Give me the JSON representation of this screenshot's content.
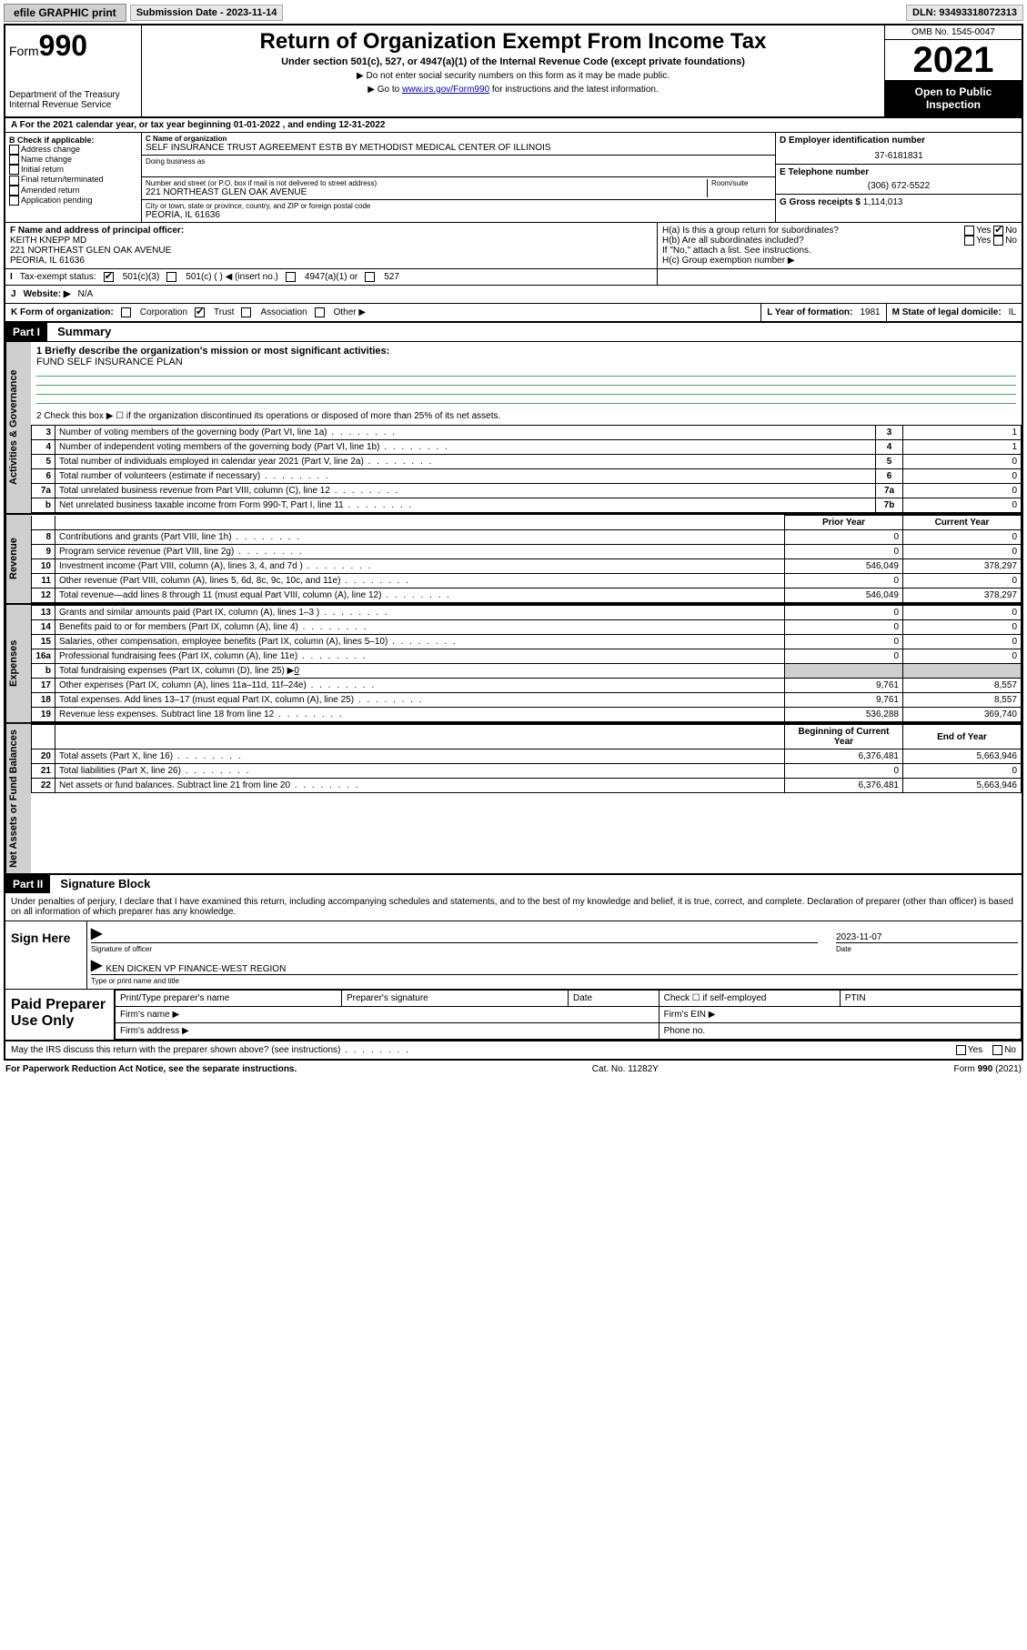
{
  "topbar": {
    "efile": "efile GRAPHIC print",
    "submission_label": "Submission Date - 2023-11-14",
    "dln": "DLN: 93493318072313"
  },
  "header": {
    "form_word": "Form",
    "form_num": "990",
    "dept": "Department of the Treasury",
    "irs": "Internal Revenue Service",
    "title": "Return of Organization Exempt From Income Tax",
    "subtitle": "Under section 501(c), 527, or 4947(a)(1) of the Internal Revenue Code (except private foundations)",
    "note1": "▶ Do not enter social security numbers on this form as it may be made public.",
    "note2_pre": "▶ Go to ",
    "note2_link": "www.irs.gov/Form990",
    "note2_post": " for instructions and the latest information.",
    "omb": "OMB No. 1545-0047",
    "year": "2021",
    "open": "Open to Public Inspection"
  },
  "period": "A For the 2021 calendar year, or tax year beginning 01-01-2022   , and ending 12-31-2022",
  "boxB": {
    "label": "B Check if applicable:",
    "items": [
      "Address change",
      "Name change",
      "Initial return",
      "Final return/terminated",
      "Amended return",
      "Application pending"
    ]
  },
  "boxC": {
    "name_label": "C Name of organization",
    "name": "SELF INSURANCE TRUST AGREEMENT ESTB BY METHODIST MEDICAL CENTER OF ILLINOIS",
    "dba_label": "Doing business as",
    "addr_label": "Number and street (or P.O. box if mail is not delivered to street address)",
    "room_label": "Room/suite",
    "addr": "221 NORTHEAST GLEN OAK AVENUE",
    "city_label": "City or town, state or province, country, and ZIP or foreign postal code",
    "city": "PEORIA, IL  61636"
  },
  "boxD": {
    "label": "D Employer identification number",
    "val": "37-6181831"
  },
  "boxE": {
    "label": "E Telephone number",
    "val": "(306) 672-5522"
  },
  "boxG": {
    "label": "G Gross receipts $",
    "val": "1,114,013"
  },
  "boxF": {
    "label": "F  Name and address of principal officer:",
    "name": "KEITH KNEPP MD",
    "addr1": "221 NORTHEAST GLEN OAK AVENUE",
    "addr2": "PEORIA, IL  61636"
  },
  "boxH": {
    "a": "H(a)  Is this a group return for subordinates?",
    "b": "H(b)  Are all subordinates included?",
    "b_note": "If \"No,\" attach a list. See instructions.",
    "c": "H(c)  Group exemption number ▶",
    "yes": "Yes",
    "no": "No"
  },
  "boxI": {
    "label": "Tax-exempt status:",
    "o1": "501(c)(3)",
    "o2": "501(c) (  ) ◀ (insert no.)",
    "o3": "4947(a)(1) or",
    "o4": "527"
  },
  "boxJ": {
    "label": "Website: ▶",
    "val": "N/A"
  },
  "boxK": {
    "label": "K Form of organization:",
    "o1": "Corporation",
    "o2": "Trust",
    "o3": "Association",
    "o4": "Other ▶"
  },
  "boxL": {
    "label": "L Year of formation:",
    "val": "1981"
  },
  "boxM": {
    "label": "M State of legal domicile:",
    "val": "IL"
  },
  "partI": {
    "tag": "Part I",
    "title": "Summary"
  },
  "summary": {
    "line1_label": "1  Briefly describe the organization's mission or most significant activities:",
    "line1_val": "FUND SELF INSURANCE PLAN",
    "line2": "2   Check this box ▶ ☐  if the organization discontinued its operations or disposed of more than 25% of its net assets.",
    "rows_gov": [
      {
        "n": "3",
        "d": "Number of voting members of the governing body (Part VI, line 1a)",
        "b": "3",
        "v": "1"
      },
      {
        "n": "4",
        "d": "Number of independent voting members of the governing body (Part VI, line 1b)",
        "b": "4",
        "v": "1"
      },
      {
        "n": "5",
        "d": "Total number of individuals employed in calendar year 2021 (Part V, line 2a)",
        "b": "5",
        "v": "0"
      },
      {
        "n": "6",
        "d": "Total number of volunteers (estimate if necessary)",
        "b": "6",
        "v": "0"
      },
      {
        "n": "7a",
        "d": "Total unrelated business revenue from Part VIII, column (C), line 12",
        "b": "7a",
        "v": "0"
      },
      {
        "n": "b",
        "d": "Net unrelated business taxable income from Form 990-T, Part I, line 11",
        "b": "7b",
        "v": "0"
      }
    ],
    "col_prior": "Prior Year",
    "col_current": "Current Year",
    "rows_rev": [
      {
        "n": "8",
        "d": "Contributions and grants (Part VIII, line 1h)",
        "p": "0",
        "c": "0"
      },
      {
        "n": "9",
        "d": "Program service revenue (Part VIII, line 2g)",
        "p": "0",
        "c": "0"
      },
      {
        "n": "10",
        "d": "Investment income (Part VIII, column (A), lines 3, 4, and 7d )",
        "p": "546,049",
        "c": "378,297"
      },
      {
        "n": "11",
        "d": "Other revenue (Part VIII, column (A), lines 5, 6d, 8c, 9c, 10c, and 11e)",
        "p": "0",
        "c": "0"
      },
      {
        "n": "12",
        "d": "Total revenue—add lines 8 through 11 (must equal Part VIII, column (A), line 12)",
        "p": "546,049",
        "c": "378,297"
      }
    ],
    "rows_exp": [
      {
        "n": "13",
        "d": "Grants and similar amounts paid (Part IX, column (A), lines 1–3 )",
        "p": "0",
        "c": "0"
      },
      {
        "n": "14",
        "d": "Benefits paid to or for members (Part IX, column (A), line 4)",
        "p": "0",
        "c": "0"
      },
      {
        "n": "15",
        "d": "Salaries, other compensation, employee benefits (Part IX, column (A), lines 5–10)",
        "p": "0",
        "c": "0"
      },
      {
        "n": "16a",
        "d": "Professional fundraising fees (Part IX, column (A), line 11e)",
        "p": "0",
        "c": "0"
      }
    ],
    "row16b": {
      "n": "b",
      "d": "Total fundraising expenses (Part IX, column (D), line 25) ▶",
      "v": "0"
    },
    "rows_exp2": [
      {
        "n": "17",
        "d": "Other expenses (Part IX, column (A), lines 11a–11d, 11f–24e)",
        "p": "9,761",
        "c": "8,557"
      },
      {
        "n": "18",
        "d": "Total expenses. Add lines 13–17 (must equal Part IX, column (A), line 25)",
        "p": "9,761",
        "c": "8,557"
      },
      {
        "n": "19",
        "d": "Revenue less expenses. Subtract line 18 from line 12",
        "p": "536,288",
        "c": "369,740"
      }
    ],
    "col_begin": "Beginning of Current Year",
    "col_end": "End of Year",
    "rows_net": [
      {
        "n": "20",
        "d": "Total assets (Part X, line 16)",
        "p": "6,376,481",
        "c": "5,663,946"
      },
      {
        "n": "21",
        "d": "Total liabilities (Part X, line 26)",
        "p": "0",
        "c": "0"
      },
      {
        "n": "22",
        "d": "Net assets or fund balances. Subtract line 21 from line 20",
        "p": "6,376,481",
        "c": "5,663,946"
      }
    ],
    "tabs": {
      "gov": "Activities & Governance",
      "rev": "Revenue",
      "exp": "Expenses",
      "net": "Net Assets or Fund Balances"
    }
  },
  "partII": {
    "tag": "Part II",
    "title": "Signature Block"
  },
  "sig": {
    "declare": "Under penalties of perjury, I declare that I have examined this return, including accompanying schedules and statements, and to the best of my knowledge and belief, it is true, correct, and complete. Declaration of preparer (other than officer) is based on all information of which preparer has any knowledge.",
    "sign_here": "Sign Here",
    "sig_officer": "Signature of officer",
    "date_label": "Date",
    "date": "2023-11-07",
    "name": "KEN DICKEN  VP FINANCE-WEST REGION",
    "name_label": "Type or print name and title",
    "paid": "Paid Preparer Use Only",
    "p_name": "Print/Type preparer's name",
    "p_sig": "Preparer's signature",
    "p_date": "Date",
    "p_check": "Check ☐ if self-employed",
    "p_ptin": "PTIN",
    "firm_name": "Firm's name   ▶",
    "firm_ein": "Firm's EIN ▶",
    "firm_addr": "Firm's address ▶",
    "phone": "Phone no."
  },
  "footer": {
    "discuss": "May the IRS discuss this return with the preparer shown above? (see instructions)",
    "yes": "Yes",
    "no": "No",
    "pra": "For Paperwork Reduction Act Notice, see the separate instructions.",
    "cat": "Cat. No. 11282Y",
    "form": "Form 990 (2021)"
  },
  "colors": {
    "link": "#0000cc",
    "shade": "#cfcfcf",
    "mission_line": "#4a6"
  }
}
